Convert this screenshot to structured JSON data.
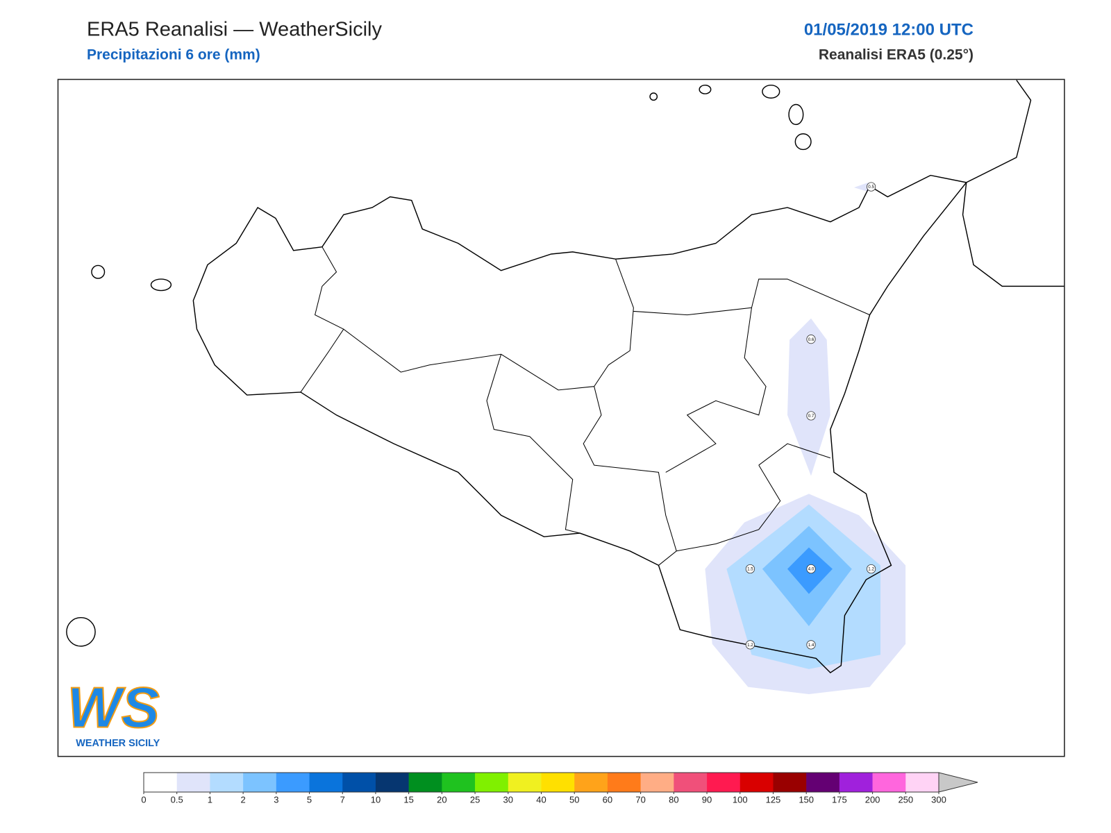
{
  "header": {
    "title": "ERA5 Reanalisi — WeatherSicily",
    "subtitle": "Precipitazioni 6 ore (mm)",
    "date": "01/05/2019 12:00 UTC",
    "source": "Reanalisi ERA5 (0.25°)"
  },
  "map": {
    "points": [
      {
        "label": "0.5"
      },
      {
        "label": "0.6"
      },
      {
        "label": "0.7"
      },
      {
        "label": "1.5"
      },
      {
        "label": "4.0"
      },
      {
        "label": "1.2"
      },
      {
        "label": "1.2"
      },
      {
        "label": "1.4"
      }
    ]
  },
  "colorbar": {
    "ticks": [
      0,
      0.5,
      1,
      2,
      3,
      5,
      7,
      10,
      15,
      20,
      25,
      30,
      40,
      50,
      60,
      70,
      80,
      90,
      100,
      125,
      150,
      175,
      200,
      250,
      300
    ],
    "colors": [
      "#ffffff",
      "#e0e4fa",
      "#b3dcff",
      "#7cc3ff",
      "#3b9bff",
      "#0a74dc",
      "#0050a8",
      "#063670",
      "#008f1f",
      "#1fc21f",
      "#80f000",
      "#f0f020",
      "#ffe000",
      "#ffa31a",
      "#ff7b1a",
      "#ffad85",
      "#f0507a",
      "#ff1a50",
      "#d90000",
      "#990000",
      "#640073",
      "#a021dc",
      "#ff66dd",
      "#ffd3f5"
    ],
    "extend_color": "#c8c8c8"
  },
  "logo": {
    "mark": "WS",
    "text": "WEATHER SICILY"
  }
}
